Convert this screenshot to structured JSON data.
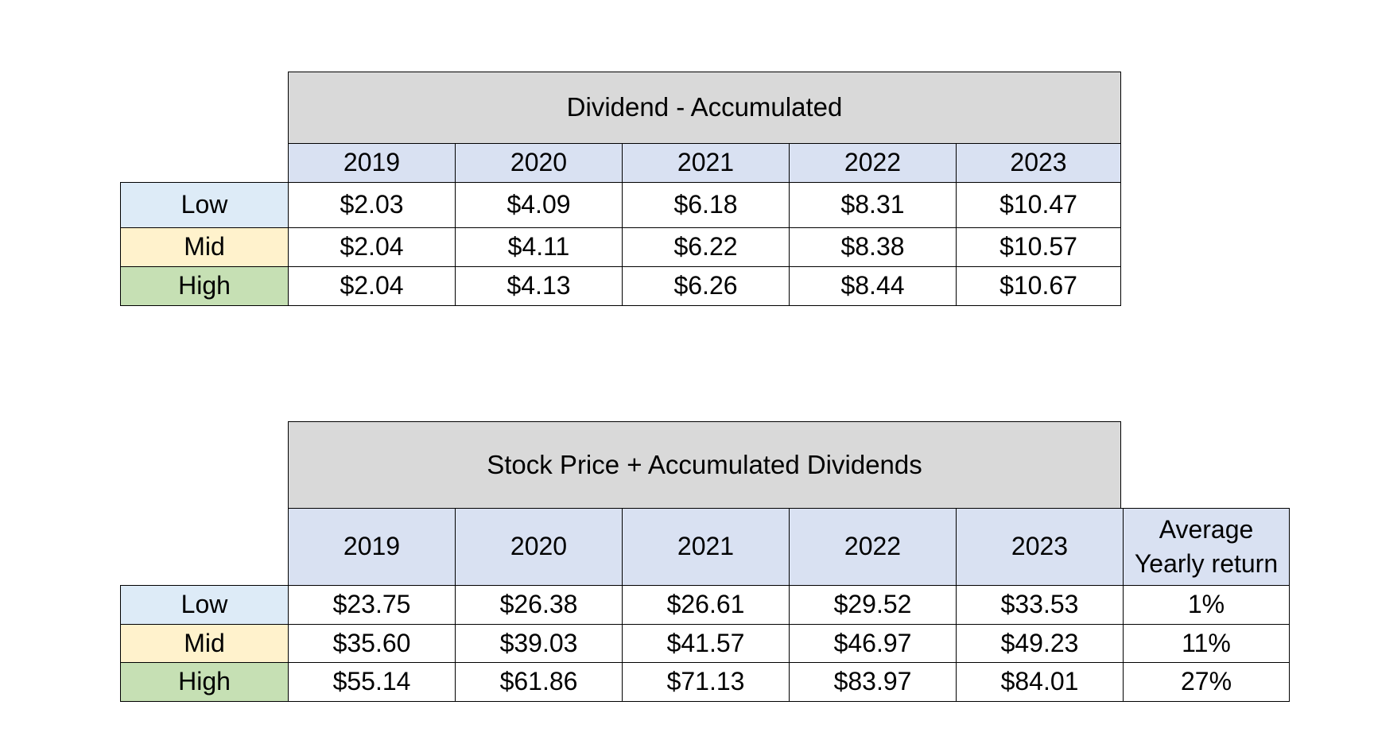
{
  "tables": [
    {
      "title": "Dividend - Accumulated",
      "years": [
        "2019",
        "2020",
        "2021",
        "2022",
        "2023"
      ],
      "extra_header": "",
      "rows": [
        {
          "label": "Low",
          "values": [
            "$2.03",
            "$4.09",
            "$6.18",
            "$8.31",
            "$10.47"
          ],
          "extra": ""
        },
        {
          "label": "Mid",
          "values": [
            "$2.04",
            "$4.11",
            "$6.22",
            "$8.38",
            "$10.57"
          ],
          "extra": ""
        },
        {
          "label": "High",
          "values": [
            "$2.04",
            "$4.13",
            "$6.26",
            "$8.44",
            "$10.67"
          ],
          "extra": ""
        }
      ]
    },
    {
      "title": "Stock Price + Accumulated Dividends",
      "years": [
        "2019",
        "2020",
        "2021",
        "2022",
        "2023"
      ],
      "extra_header": "Average Yearly return",
      "rows": [
        {
          "label": "Low",
          "values": [
            "$23.75",
            "$26.38",
            "$26.61",
            "$29.52",
            "$33.53"
          ],
          "extra": "1%"
        },
        {
          "label": "Mid",
          "values": [
            "$35.60",
            "$39.03",
            "$41.57",
            "$46.97",
            "$49.23"
          ],
          "extra": "11%"
        },
        {
          "label": "High",
          "values": [
            "$55.14",
            "$61.86",
            "$71.13",
            "$83.97",
            "$84.01"
          ],
          "extra": "27%"
        }
      ]
    }
  ],
  "colors": {
    "title_fill": "#d9d9d9",
    "year_fill": "#d9e1f2",
    "low_fill": "#ddebf7",
    "mid_fill": "#fff2cc",
    "high_fill": "#c6e0b4"
  }
}
